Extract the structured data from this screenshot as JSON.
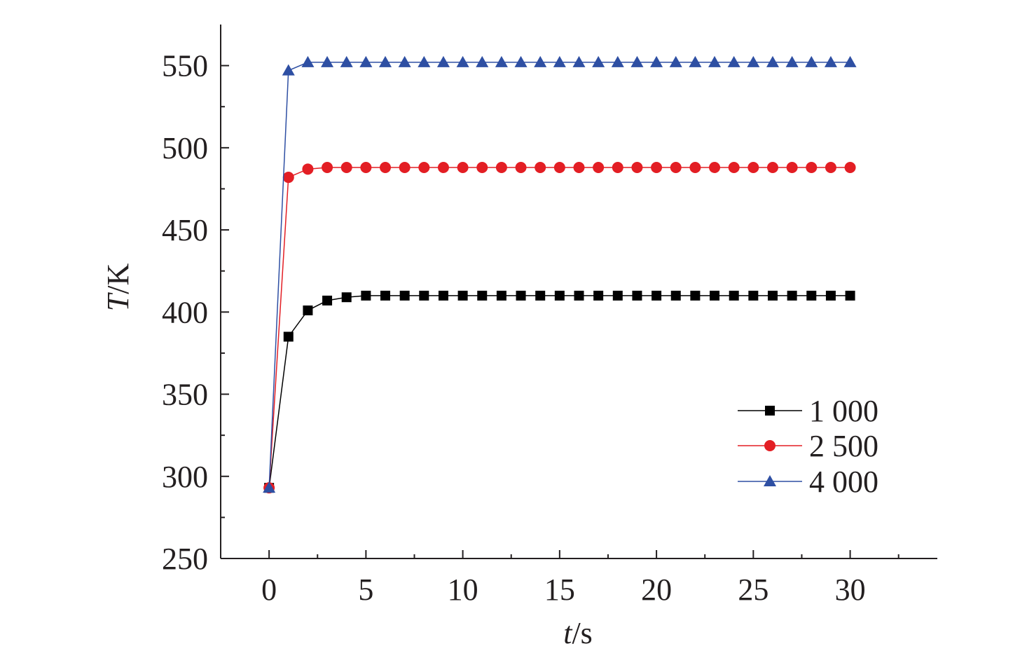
{
  "chart_data": {
    "type": "line",
    "title": "",
    "xlabel": {
      "var": "t",
      "unit": "/s"
    },
    "ylabel": {
      "var": "T",
      "unit": "/K"
    },
    "xlim": [
      -2.5,
      34.5
    ],
    "ylim": [
      250,
      575
    ],
    "xticks": [
      0,
      5,
      10,
      15,
      20,
      25,
      30
    ],
    "yticks": [
      250,
      300,
      350,
      400,
      450,
      500,
      550
    ],
    "grid": false,
    "legend_position": "bottom-right",
    "x": [
      0,
      1,
      2,
      3,
      4,
      5,
      6,
      7,
      8,
      9,
      10,
      11,
      12,
      13,
      14,
      15,
      16,
      17,
      18,
      19,
      20,
      21,
      22,
      23,
      24,
      25,
      26,
      27,
      28,
      29,
      30
    ],
    "series": [
      {
        "name": "1 000",
        "color": "#000000",
        "marker": "square",
        "values": [
          293,
          385,
          401,
          407,
          409,
          410,
          410,
          410,
          410,
          410,
          410,
          410,
          410,
          410,
          410,
          410,
          410,
          410,
          410,
          410,
          410,
          410,
          410,
          410,
          410,
          410,
          410,
          410,
          410,
          410,
          410
        ]
      },
      {
        "name": "2 500",
        "color": "#e31e24",
        "marker": "circle",
        "values": [
          293,
          482,
          487,
          488,
          488,
          488,
          488,
          488,
          488,
          488,
          488,
          488,
          488,
          488,
          488,
          488,
          488,
          488,
          488,
          488,
          488,
          488,
          488,
          488,
          488,
          488,
          488,
          488,
          488,
          488,
          488
        ]
      },
      {
        "name": "4 000",
        "color": "#2e4fa3",
        "marker": "triangle",
        "values": [
          293,
          547,
          552,
          552,
          552,
          552,
          552,
          552,
          552,
          552,
          552,
          552,
          552,
          552,
          552,
          552,
          552,
          552,
          552,
          552,
          552,
          552,
          552,
          552,
          552,
          552,
          552,
          552,
          552,
          552,
          552
        ]
      }
    ]
  }
}
